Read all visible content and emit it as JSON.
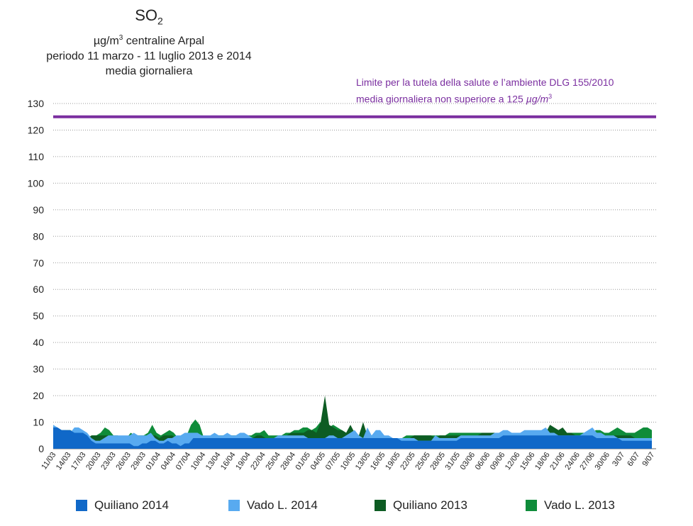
{
  "title": {
    "main": "SO",
    "main_sub": "2",
    "line1_pre": "µg/m",
    "line1_sup": "3",
    "line1_post": " centraline Arpal",
    "line2": "periodo 11 marzo - 11 luglio 2013 e 2014",
    "line3": "media giornaliera"
  },
  "limit": {
    "line1": "Limite per la tutela della salute e l’ambiente DLG 155/2010",
    "line2_pre": "media giornaliera non superiore a 125 ",
    "line2_unit": "µg/m",
    "line2_sup": "3",
    "color": "#7b2fa0"
  },
  "chart_data": {
    "type": "area",
    "ylim": [
      0,
      130
    ],
    "yticks": [
      0,
      10,
      20,
      30,
      40,
      50,
      60,
      70,
      80,
      90,
      100,
      110,
      120,
      130
    ],
    "grid": true,
    "legend_position": "bottom",
    "limit_value": 125,
    "x_tick_labels": [
      "11/03",
      "14/03",
      "17/03",
      "20/03",
      "23/03",
      "26/03",
      "29/03",
      "01/04",
      "04/04",
      "07/04",
      "10/04",
      "13/04",
      "16/04",
      "19/04",
      "22/04",
      "25/04",
      "28/04",
      "01/05",
      "04/05",
      "07/05",
      "10/05",
      "13/05",
      "16/05",
      "19/05",
      "22/05",
      "25/05",
      "28/05",
      "31/05",
      "03/06",
      "06/06",
      "09/06",
      "12/06",
      "15/06",
      "18/06",
      "21/06",
      "24/06",
      "27/06",
      "30/06",
      "3/07",
      "6/07",
      "9/07"
    ],
    "series": [
      {
        "name": "Vado L. 2013",
        "color": "#0f8c3a",
        "values": [
          8,
          7,
          7,
          7,
          7,
          6,
          5,
          4,
          4,
          5,
          5,
          6,
          8,
          7,
          5,
          5,
          4,
          4,
          6,
          5,
          5,
          5,
          6,
          9,
          6,
          5,
          6,
          7,
          6,
          4,
          4,
          5,
          9,
          11,
          9,
          4,
          4,
          5,
          5,
          5,
          5,
          5,
          5,
          5,
          6,
          5,
          5,
          6,
          6,
          7,
          5,
          5,
          5,
          5,
          6,
          6,
          7,
          7,
          8,
          8,
          7,
          8,
          10,
          9,
          8,
          9,
          8,
          7,
          6,
          6,
          6,
          5,
          5,
          5,
          5,
          4,
          4,
          4,
          4,
          4,
          4,
          4,
          5,
          5,
          5,
          5,
          5,
          5,
          5,
          5,
          5,
          5,
          6,
          6,
          6,
          6,
          6,
          6,
          6,
          6,
          6,
          6,
          6,
          6,
          6,
          6,
          6,
          6,
          6,
          6,
          6,
          6,
          6,
          6,
          6,
          6,
          7,
          7,
          6,
          6,
          6,
          6,
          6,
          6,
          6,
          6,
          7,
          7,
          6,
          6,
          7,
          8,
          7,
          6,
          6,
          6,
          7,
          8,
          8,
          7
        ]
      },
      {
        "name": "Quiliano 2013",
        "color": "#0d5c23",
        "values": [
          7,
          7,
          7,
          6,
          6,
          5,
          4,
          4,
          4,
          5,
          5,
          5,
          5,
          5,
          4,
          4,
          4,
          4,
          5,
          4,
          4,
          4,
          4,
          5,
          5,
          4,
          5,
          5,
          5,
          4,
          4,
          5,
          5,
          5,
          5,
          4,
          4,
          4,
          4,
          4,
          5,
          5,
          5,
          4,
          5,
          4,
          4,
          4,
          5,
          5,
          4,
          4,
          4,
          4,
          5,
          5,
          6,
          6,
          6,
          6,
          7,
          7,
          6,
          10,
          20,
          9,
          8,
          7,
          7,
          6,
          9,
          6,
          5,
          10,
          5,
          5,
          6,
          5,
          4,
          4,
          4,
          4,
          4,
          4,
          4,
          5,
          5,
          5,
          5,
          5,
          4,
          5,
          5,
          5,
          5,
          5,
          5,
          5,
          5,
          5,
          5,
          6,
          6,
          6,
          6,
          6,
          5,
          5,
          5,
          5,
          5,
          5,
          5,
          5,
          5,
          5,
          6,
          9,
          8,
          7,
          8,
          6,
          6,
          5,
          5,
          5,
          5,
          5,
          5,
          5,
          5,
          5,
          5,
          5,
          5,
          5,
          5,
          4,
          4,
          3,
          3,
          3
        ]
      },
      {
        "name": "Vado L. 2014",
        "color": "#58aaf0",
        "values": [
          9,
          8,
          7,
          7,
          6,
          8,
          8,
          7,
          6,
          4,
          3,
          3,
          4,
          5,
          5,
          5,
          5,
          5,
          5,
          6,
          5,
          5,
          5,
          6,
          4,
          3,
          3,
          4,
          4,
          5,
          5,
          6,
          6,
          6,
          6,
          5,
          5,
          5,
          6,
          5,
          5,
          6,
          5,
          5,
          6,
          6,
          5,
          4,
          4,
          4,
          4,
          4,
          4,
          5,
          5,
          5,
          5,
          5,
          5,
          5,
          4,
          4,
          4,
          4,
          4,
          5,
          5,
          4,
          4,
          5,
          6,
          7,
          5,
          4,
          8,
          5,
          7,
          7,
          5,
          5,
          4,
          4,
          4,
          4,
          4,
          4,
          3,
          3,
          3,
          3,
          5,
          4,
          4,
          4,
          4,
          4,
          5,
          5,
          5,
          5,
          5,
          5,
          5,
          5,
          6,
          6,
          7,
          7,
          6,
          6,
          6,
          7,
          7,
          7,
          7,
          7,
          8,
          6,
          6,
          5,
          5,
          5,
          5,
          5,
          5,
          6,
          7,
          8,
          6,
          6,
          5,
          5,
          5,
          4,
          4,
          4,
          4,
          4,
          4,
          4,
          4,
          4
        ]
      },
      {
        "name": "Quiliano 2014",
        "color": "#1068c8",
        "values": [
          8,
          8,
          7,
          7,
          7,
          6,
          6,
          6,
          5,
          3,
          2,
          2,
          2,
          2,
          2,
          2,
          2,
          2,
          2,
          1,
          1,
          2,
          2,
          3,
          3,
          2,
          2,
          3,
          2,
          2,
          1,
          2,
          2,
          4,
          4,
          4,
          4,
          4,
          4,
          4,
          4,
          4,
          4,
          4,
          4,
          4,
          4,
          4,
          4,
          4,
          4,
          4,
          4,
          4,
          4,
          4,
          4,
          4,
          4,
          4,
          4,
          4,
          4,
          4,
          4,
          4,
          4,
          4,
          4,
          4,
          4,
          4,
          4,
          4,
          4,
          4,
          4,
          4,
          4,
          4,
          4,
          4,
          3,
          3,
          3,
          3,
          3,
          3,
          3,
          3,
          3,
          3,
          3,
          3,
          3,
          3,
          4,
          4,
          4,
          4,
          4,
          4,
          4,
          4,
          4,
          4,
          5,
          5,
          5,
          5,
          5,
          5,
          5,
          5,
          5,
          5,
          5,
          5,
          5,
          5,
          5,
          5,
          5,
          5,
          5,
          5,
          5,
          5,
          4,
          4,
          4,
          4,
          4,
          4,
          3,
          3,
          3,
          3,
          3,
          3,
          3,
          3
        ]
      }
    ]
  },
  "legend": [
    {
      "label": "Quiliano 2014",
      "color": "#1068c8"
    },
    {
      "label": "Vado L. 2014",
      "color": "#58aaf0"
    },
    {
      "label": "Quiliano 2013",
      "color": "#0d5c23"
    },
    {
      "label": "Vado L. 2013",
      "color": "#0f8c3a"
    }
  ]
}
